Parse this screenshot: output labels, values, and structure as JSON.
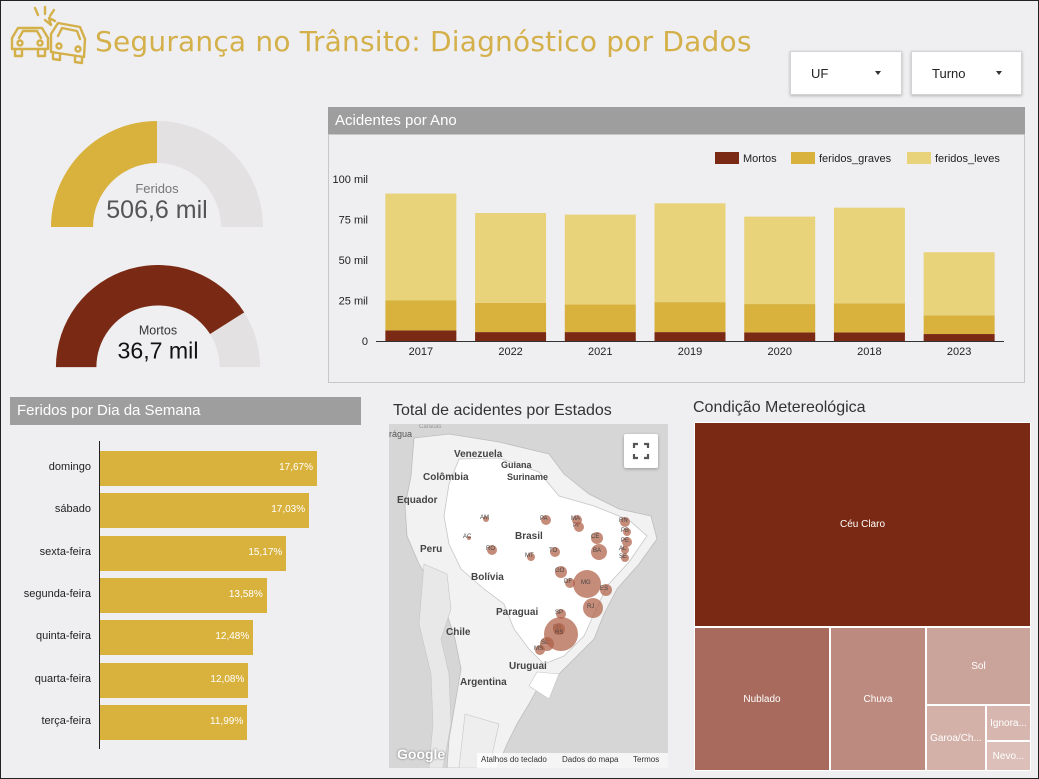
{
  "header": {
    "title": "Segurança no Trânsito: Diagnóstico por Dados",
    "logo_icon": "car-crash-icon"
  },
  "filters": [
    {
      "label": "UF"
    },
    {
      "label": "Turno"
    }
  ],
  "gauges": [
    {
      "label": "Feridos",
      "value": "506,6 mil",
      "fraction": 0.5,
      "color": "#d9b23e"
    },
    {
      "label": "Mortos",
      "value": "36,7 mil",
      "fraction": 0.82,
      "color": "#7a2a14"
    }
  ],
  "colors": {
    "mortos": "#7a2a14",
    "feridos_graves": "#d9b23e",
    "feridos_leves": "#e8d27a",
    "accent": "#d4b04a"
  },
  "accidents_by_year": {
    "title": "Acidentes por Ano",
    "chart_data": {
      "type": "bar",
      "stacked": true,
      "categories": [
        "2017",
        "2022",
        "2021",
        "2019",
        "2020",
        "2018",
        "2023"
      ],
      "series": [
        {
          "name": "Mortos",
          "values": [
            6.5,
            5.5,
            5.5,
            5.5,
            5.3,
            5.3,
            4.3
          ]
        },
        {
          "name": "feridos_graves",
          "values": [
            18.5,
            18,
            17,
            18.5,
            17.5,
            18,
            11.5
          ]
        },
        {
          "name": "feridos_leves",
          "values": [
            66,
            55.5,
            55.5,
            61,
            54,
            59,
            39
          ]
        }
      ],
      "yticks": [
        {
          "value": 0,
          "label": "0"
        },
        {
          "value": 25,
          "label": "25 mil"
        },
        {
          "value": 50,
          "label": "50 mil"
        },
        {
          "value": 75,
          "label": "75 mil"
        },
        {
          "value": 100,
          "label": "100 mil"
        }
      ],
      "ylim": [
        0,
        100
      ],
      "legend": "top-right"
    }
  },
  "feridos_by_day": {
    "title": "Feridos por Dia da Semana",
    "chart_data": {
      "type": "bar",
      "orientation": "horizontal",
      "categories": [
        "domingo",
        "sábado",
        "sexta-feira",
        "segunda-feira",
        "quinta-feira",
        "quarta-feira",
        "terça-feira"
      ],
      "values": [
        17.67,
        17.03,
        15.17,
        13.58,
        12.48,
        12.08,
        11.99
      ],
      "labels": [
        "17,67%",
        "17,03%",
        "15,17%",
        "13,58%",
        "12,48%",
        "12,08%",
        "11,99%"
      ]
    }
  },
  "map": {
    "title": "Total de acidentes por Estados",
    "countries": [
      "Venezuela",
      "Guiana",
      "Suriname",
      "Colômbia",
      "Equador",
      "Peru",
      "Brasil",
      "Bolívia",
      "Paraguai",
      "Chile",
      "Uruguai",
      "Argentina"
    ],
    "top_label": "rágua",
    "top_small": "Caracas",
    "states": [
      "AM",
      "AC",
      "RO",
      "MT",
      "GO",
      "MG",
      "ES",
      "RJ",
      "SP",
      "PR",
      "SC",
      "RS",
      "MS",
      "BA",
      "SE",
      "AL",
      "PE",
      "PB",
      "RN",
      "CE",
      "PI",
      "MA",
      "PA",
      "TO",
      "DF"
    ],
    "footer": {
      "logo": "Google",
      "shortcuts": "Atalhos do teclado",
      "map_data": "Dados do mapa",
      "terms": "Termos"
    },
    "fullscreen_icon": "fullscreen-icon"
  },
  "weather": {
    "title": "Condição Metereológica",
    "chart_data": {
      "type": "treemap",
      "categories": [
        "Céu Claro",
        "Nublado",
        "Chuva",
        "Sol",
        "Garoa/Ch...",
        "Ignora...",
        "Nevo..."
      ]
    }
  }
}
